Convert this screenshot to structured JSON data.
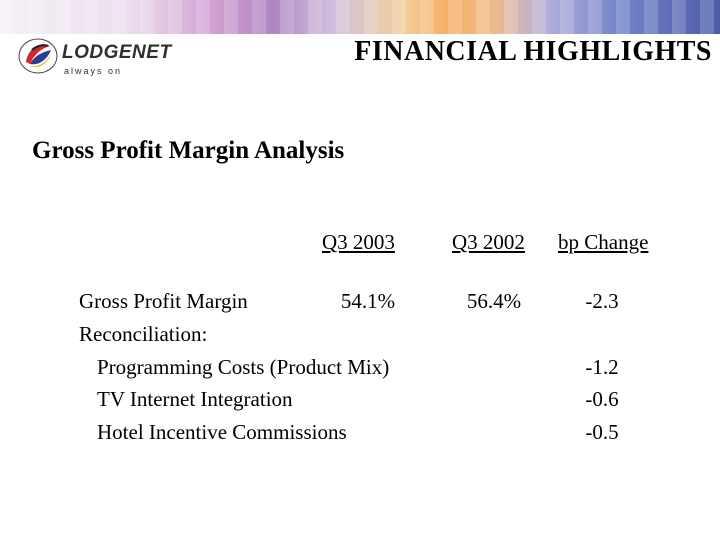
{
  "header": {
    "logo": {
      "brand": "LODGENET",
      "tagline": "always on"
    },
    "title": "FINANCIAL HIGHLIGHTS"
  },
  "section": {
    "title": "Gross Profit Margin Analysis"
  },
  "table": {
    "columns": [
      "Q3 2003",
      "Q3 2002",
      "bp Change"
    ],
    "rows": [
      {
        "label": "Gross Profit Margin",
        "q3_2003": "54.1%",
        "q3_2002": "56.4%",
        "bp_change": "-2.3"
      },
      {
        "label": "Reconciliation:"
      },
      {
        "label": "Programming Costs (Product Mix)",
        "bp_change": "-1.2"
      },
      {
        "label": "TV Internet Integration",
        "bp_change": "-0.6"
      },
      {
        "label": "Hotel Incentive Commissions",
        "bp_change": "-0.5"
      }
    ]
  },
  "colors": {
    "logo_red": "#d7262b",
    "logo_blue": "#2a3d8f",
    "logo_yellow": "#f2b51c"
  }
}
